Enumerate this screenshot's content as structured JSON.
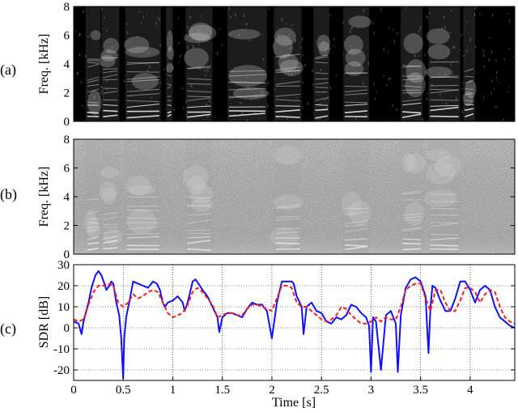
{
  "figure": {
    "panel_labels": [
      "(a)",
      "(b)",
      "(c)"
    ]
  },
  "colors": {
    "blue_series": "#1010ff",
    "red_series": "#ff1a1a",
    "spectrogram_bg": "#000000"
  },
  "chart_data": [
    {
      "type": "heatmap",
      "panel": "(a)",
      "ylabel": "Freq. [kHz]",
      "xlim": [
        0,
        4.45
      ],
      "ylim": [
        0,
        8
      ],
      "y_ticks": [
        "0",
        "2",
        "4",
        "6",
        "8"
      ],
      "grid": false,
      "colormap": "grayscale",
      "speech_segments_s": [
        [
          0.12,
          0.27
        ],
        [
          0.28,
          0.46
        ],
        [
          0.52,
          0.88
        ],
        [
          0.93,
          1.0
        ],
        [
          1.13,
          1.4
        ],
        [
          1.55,
          1.95
        ],
        [
          2.02,
          2.3
        ],
        [
          2.42,
          2.58
        ],
        [
          2.72,
          2.98
        ],
        [
          3.3,
          3.52
        ],
        [
          3.58,
          3.9
        ],
        [
          3.93,
          4.05
        ]
      ]
    },
    {
      "type": "heatmap",
      "panel": "(b)",
      "ylabel": "Freq. [kHz]",
      "xlim": [
        0,
        4.45
      ],
      "ylim": [
        0,
        8
      ],
      "y_ticks": [
        "0",
        "2",
        "4",
        "6",
        "8"
      ],
      "grid": false,
      "colormap": "grayscale",
      "speech_segments_s": [
        [
          0.12,
          0.27
        ],
        [
          0.28,
          0.46
        ],
        [
          0.52,
          0.88
        ],
        [
          1.13,
          1.4
        ],
        [
          2.02,
          2.3
        ],
        [
          2.72,
          2.98
        ],
        [
          3.3,
          3.52
        ],
        [
          3.58,
          3.9
        ]
      ]
    },
    {
      "type": "line",
      "panel": "(c)",
      "xlabel": "Time [s]",
      "ylabel": "SDR [dB]",
      "xlim": [
        0,
        4.45
      ],
      "ylim": [
        -25,
        30
      ],
      "x_ticks": [
        "0",
        "0.5",
        "1",
        "1.5",
        "2",
        "2.5",
        "3",
        "3.5",
        "4"
      ],
      "y_ticks": [
        "30",
        "20",
        "10",
        "0",
        "-10",
        "-20"
      ],
      "grid": true,
      "series": [
        {
          "color": "#1010ff",
          "style": "solid",
          "x": [
            0.0,
            0.05,
            0.08,
            0.1,
            0.15,
            0.18,
            0.2,
            0.22,
            0.25,
            0.28,
            0.31,
            0.33,
            0.36,
            0.38,
            0.4,
            0.43,
            0.46,
            0.48,
            0.49,
            0.5,
            0.51,
            0.53,
            0.56,
            0.6,
            0.65,
            0.7,
            0.75,
            0.8,
            0.84,
            0.87,
            0.9,
            0.92,
            0.95,
            1.0,
            1.05,
            1.1,
            1.12,
            1.15,
            1.2,
            1.23,
            1.26,
            1.3,
            1.35,
            1.4,
            1.45,
            1.47,
            1.5,
            1.55,
            1.6,
            1.65,
            1.7,
            1.75,
            1.8,
            1.85,
            1.9,
            1.95,
            2.0,
            2.05,
            2.1,
            2.15,
            2.2,
            2.22,
            2.25,
            2.3,
            2.32,
            2.35,
            2.4,
            2.45,
            2.5,
            2.55,
            2.6,
            2.65,
            2.7,
            2.75,
            2.8,
            2.85,
            2.9,
            2.95,
            2.98,
            3.0,
            3.02,
            3.05,
            3.1,
            3.15,
            3.2,
            3.25,
            3.27,
            3.3,
            3.35,
            3.4,
            3.45,
            3.5,
            3.55,
            3.58,
            3.6,
            3.62,
            3.65,
            3.7,
            3.75,
            3.8,
            3.85,
            3.9,
            3.95,
            4.0,
            4.05,
            4.1,
            4.15,
            4.2,
            4.25,
            4.3,
            4.35,
            4.4,
            4.45
          ],
          "y": [
            3,
            2,
            -3,
            3,
            12,
            19,
            22,
            25,
            27,
            25,
            21,
            18,
            20,
            22,
            21,
            12,
            6,
            -5,
            -15,
            -24,
            -5,
            5,
            12,
            22,
            21,
            20,
            19,
            22,
            21,
            18,
            12,
            10,
            12,
            13,
            15,
            12,
            8,
            12,
            22,
            23,
            21,
            18,
            15,
            10,
            5,
            -2,
            5,
            7,
            7,
            6,
            5,
            9,
            12,
            11,
            11,
            8,
            -5,
            12,
            22,
            22,
            22,
            21,
            15,
            10,
            -3,
            10,
            12,
            8,
            7,
            3,
            2,
            5,
            4,
            6,
            11,
            10,
            7,
            5,
            1,
            -21,
            5,
            3,
            -20,
            6,
            8,
            2,
            -21,
            6,
            19,
            23,
            24,
            22,
            15,
            -12,
            10,
            20,
            19,
            13,
            8,
            8,
            14,
            22,
            22,
            18,
            12,
            18,
            20,
            18,
            10,
            5,
            3,
            1,
            0
          ]
        },
        {
          "color": "#ff1a1a",
          "style": "dashed",
          "x": [
            0.0,
            0.05,
            0.1,
            0.15,
            0.2,
            0.25,
            0.3,
            0.35,
            0.4,
            0.45,
            0.5,
            0.55,
            0.6,
            0.65,
            0.7,
            0.75,
            0.8,
            0.85,
            0.9,
            0.95,
            1.0,
            1.05,
            1.1,
            1.15,
            1.2,
            1.25,
            1.3,
            1.35,
            1.4,
            1.45,
            1.5,
            1.55,
            1.6,
            1.65,
            1.7,
            1.75,
            1.8,
            1.85,
            1.9,
            1.95,
            2.0,
            2.05,
            2.1,
            2.15,
            2.2,
            2.25,
            2.3,
            2.35,
            2.4,
            2.45,
            2.5,
            2.55,
            2.6,
            2.65,
            2.7,
            2.75,
            2.8,
            2.85,
            2.9,
            2.95,
            3.0,
            3.05,
            3.1,
            3.15,
            3.2,
            3.25,
            3.3,
            3.35,
            3.4,
            3.45,
            3.5,
            3.55,
            3.6,
            3.65,
            3.7,
            3.75,
            3.8,
            3.85,
            3.9,
            3.95,
            4.0,
            4.05,
            4.1,
            4.15,
            4.2,
            4.25,
            4.3,
            4.35,
            4.4,
            4.45
          ],
          "y": [
            4,
            3,
            4,
            11,
            17,
            20,
            20,
            21,
            20,
            12,
            10,
            12,
            16,
            14,
            15,
            17,
            18,
            17,
            12,
            7,
            5,
            6,
            7,
            11,
            17,
            19,
            17,
            14,
            11,
            5,
            6,
            7,
            7,
            6,
            6,
            9,
            11,
            11,
            10,
            9,
            8,
            14,
            20,
            20,
            19,
            12,
            10,
            10,
            8,
            6,
            4,
            3,
            4,
            6,
            10,
            9,
            6,
            4,
            2,
            2,
            3,
            5,
            3,
            5,
            4,
            4,
            10,
            18,
            20,
            21,
            21,
            14,
            8,
            18,
            18,
            12,
            8,
            8,
            13,
            19,
            19,
            17,
            12,
            16,
            18,
            17,
            10,
            5,
            3,
            2
          ]
        }
      ]
    }
  ]
}
